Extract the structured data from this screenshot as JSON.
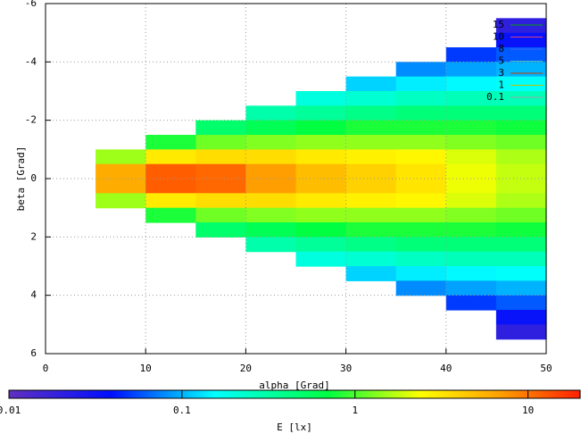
{
  "chart_data": {
    "type": "heatmap",
    "xlabel": "alpha [Grad]",
    "ylabel": "beta [Grad]",
    "colorbar_label": "E [lx]",
    "xlim": [
      0,
      50
    ],
    "xticks": [
      0,
      10,
      20,
      30,
      40,
      50
    ],
    "ylim": [
      -6,
      6
    ],
    "y_inverted": true,
    "yticks": [
      -6,
      -4,
      -2,
      0,
      2,
      4,
      6
    ],
    "grid": true,
    "cblim": [
      0.01,
      20
    ],
    "cbticks": [
      0.01,
      0.1,
      1,
      10
    ],
    "cb_log": true,
    "legend": "upper right",
    "contours": [
      {
        "level": 15,
        "color": "#00a000"
      },
      {
        "level": 10,
        "color": "#e04080"
      },
      {
        "level": 8,
        "color": "#4060ff"
      },
      {
        "level": 5,
        "color": "#40c0c0"
      },
      {
        "level": 3,
        "color": "#c04000"
      },
      {
        "level": 1,
        "color": "#c0c000"
      },
      {
        "level": 0.1,
        "color": "#a0a0a0"
      }
    ],
    "xbins": [
      5,
      10,
      15,
      20,
      25,
      30,
      35,
      40,
      45,
      50
    ],
    "ybins": [
      -6,
      -5.5,
      -5,
      -4.5,
      -4,
      -3.5,
      -3,
      -2.5,
      -2,
      -1.5,
      -1,
      -0.5,
      0,
      0.5,
      1,
      1.5,
      2,
      2.5,
      3,
      3.5,
      4,
      4.5,
      5,
      5.5,
      6
    ],
    "z": [
      [
        null,
        null,
        null,
        null,
        null,
        null,
        null,
        null,
        null
      ],
      [
        null,
        null,
        null,
        null,
        null,
        null,
        null,
        null,
        0.02
      ],
      [
        null,
        null,
        null,
        null,
        null,
        null,
        null,
        null,
        0.035
      ],
      [
        null,
        null,
        null,
        null,
        null,
        null,
        null,
        0.05,
        0.06
      ],
      [
        null,
        null,
        null,
        null,
        null,
        null,
        0.08,
        0.09,
        0.1
      ],
      [
        null,
        null,
        null,
        null,
        null,
        0.12,
        0.14,
        0.15,
        0.16
      ],
      [
        null,
        null,
        null,
        null,
        0.2,
        0.22,
        0.25,
        0.27,
        0.27
      ],
      [
        null,
        null,
        null,
        0.3,
        0.35,
        0.4,
        0.45,
        0.45,
        0.45
      ],
      [
        null,
        null,
        0.5,
        0.6,
        0.7,
        0.8,
        0.8,
        0.8,
        0.75
      ],
      [
        null,
        0.8,
        1.2,
        1.3,
        1.4,
        1.4,
        1.4,
        1.3,
        1.2
      ],
      [
        1.5,
        3,
        3.5,
        3.5,
        3,
        2.8,
        2.6,
        2,
        1.6
      ],
      [
        6,
        12,
        11,
        7,
        5,
        4,
        3.2,
        2.2,
        1.8
      ],
      [
        6,
        12,
        11,
        7,
        5,
        4,
        3.2,
        2.2,
        1.8
      ],
      [
        1.5,
        3,
        3.5,
        3.5,
        3,
        2.8,
        2.6,
        2,
        1.6
      ],
      [
        null,
        0.8,
        1.2,
        1.3,
        1.4,
        1.4,
        1.4,
        1.3,
        1.2
      ],
      [
        null,
        null,
        0.5,
        0.6,
        0.7,
        0.8,
        0.8,
        0.8,
        0.75
      ],
      [
        null,
        null,
        null,
        0.3,
        0.35,
        0.4,
        0.45,
        0.45,
        0.45
      ],
      [
        null,
        null,
        null,
        null,
        0.2,
        0.22,
        0.25,
        0.27,
        0.27
      ],
      [
        null,
        null,
        null,
        null,
        null,
        0.12,
        0.14,
        0.15,
        0.16
      ],
      [
        null,
        null,
        null,
        null,
        null,
        null,
        0.08,
        0.09,
        0.1
      ],
      [
        null,
        null,
        null,
        null,
        null,
        null,
        null,
        0.05,
        0.06
      ],
      [
        null,
        null,
        null,
        null,
        null,
        null,
        null,
        null,
        0.035
      ],
      [
        null,
        null,
        null,
        null,
        null,
        null,
        null,
        null,
        0.02
      ],
      [
        null,
        null,
        null,
        null,
        null,
        null,
        null,
        null,
        null
      ]
    ]
  }
}
